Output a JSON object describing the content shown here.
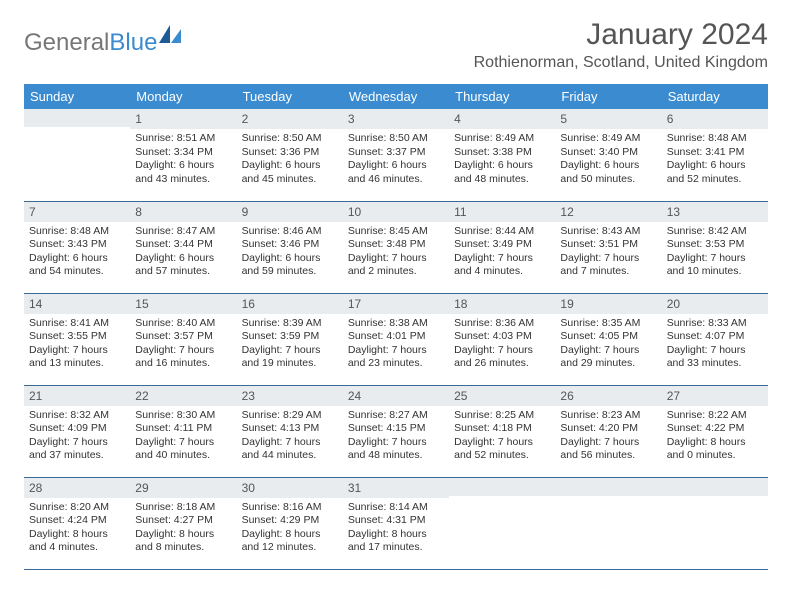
{
  "logo": {
    "text1": "General",
    "text2": "Blue"
  },
  "title": "January 2024",
  "location": "Rothienorman, Scotland, United Kingdom",
  "headers": [
    "Sunday",
    "Monday",
    "Tuesday",
    "Wednesday",
    "Thursday",
    "Friday",
    "Saturday"
  ],
  "colors": {
    "header_bg": "#3a8bd0",
    "header_text": "#ffffff",
    "daynum_bg": "#e9ecef",
    "border": "#3a6a9a",
    "body_text": "#333333",
    "title_text": "#555555"
  },
  "weeks": [
    [
      {
        "n": "",
        "sr": "",
        "ss": "",
        "dl": ""
      },
      {
        "n": "1",
        "sr": "Sunrise: 8:51 AM",
        "ss": "Sunset: 3:34 PM",
        "dl": "Daylight: 6 hours and 43 minutes."
      },
      {
        "n": "2",
        "sr": "Sunrise: 8:50 AM",
        "ss": "Sunset: 3:36 PM",
        "dl": "Daylight: 6 hours and 45 minutes."
      },
      {
        "n": "3",
        "sr": "Sunrise: 8:50 AM",
        "ss": "Sunset: 3:37 PM",
        "dl": "Daylight: 6 hours and 46 minutes."
      },
      {
        "n": "4",
        "sr": "Sunrise: 8:49 AM",
        "ss": "Sunset: 3:38 PM",
        "dl": "Daylight: 6 hours and 48 minutes."
      },
      {
        "n": "5",
        "sr": "Sunrise: 8:49 AM",
        "ss": "Sunset: 3:40 PM",
        "dl": "Daylight: 6 hours and 50 minutes."
      },
      {
        "n": "6",
        "sr": "Sunrise: 8:48 AM",
        "ss": "Sunset: 3:41 PM",
        "dl": "Daylight: 6 hours and 52 minutes."
      }
    ],
    [
      {
        "n": "7",
        "sr": "Sunrise: 8:48 AM",
        "ss": "Sunset: 3:43 PM",
        "dl": "Daylight: 6 hours and 54 minutes."
      },
      {
        "n": "8",
        "sr": "Sunrise: 8:47 AM",
        "ss": "Sunset: 3:44 PM",
        "dl": "Daylight: 6 hours and 57 minutes."
      },
      {
        "n": "9",
        "sr": "Sunrise: 8:46 AM",
        "ss": "Sunset: 3:46 PM",
        "dl": "Daylight: 6 hours and 59 minutes."
      },
      {
        "n": "10",
        "sr": "Sunrise: 8:45 AM",
        "ss": "Sunset: 3:48 PM",
        "dl": "Daylight: 7 hours and 2 minutes."
      },
      {
        "n": "11",
        "sr": "Sunrise: 8:44 AM",
        "ss": "Sunset: 3:49 PM",
        "dl": "Daylight: 7 hours and 4 minutes."
      },
      {
        "n": "12",
        "sr": "Sunrise: 8:43 AM",
        "ss": "Sunset: 3:51 PM",
        "dl": "Daylight: 7 hours and 7 minutes."
      },
      {
        "n": "13",
        "sr": "Sunrise: 8:42 AM",
        "ss": "Sunset: 3:53 PM",
        "dl": "Daylight: 7 hours and 10 minutes."
      }
    ],
    [
      {
        "n": "14",
        "sr": "Sunrise: 8:41 AM",
        "ss": "Sunset: 3:55 PM",
        "dl": "Daylight: 7 hours and 13 minutes."
      },
      {
        "n": "15",
        "sr": "Sunrise: 8:40 AM",
        "ss": "Sunset: 3:57 PM",
        "dl": "Daylight: 7 hours and 16 minutes."
      },
      {
        "n": "16",
        "sr": "Sunrise: 8:39 AM",
        "ss": "Sunset: 3:59 PM",
        "dl": "Daylight: 7 hours and 19 minutes."
      },
      {
        "n": "17",
        "sr": "Sunrise: 8:38 AM",
        "ss": "Sunset: 4:01 PM",
        "dl": "Daylight: 7 hours and 23 minutes."
      },
      {
        "n": "18",
        "sr": "Sunrise: 8:36 AM",
        "ss": "Sunset: 4:03 PM",
        "dl": "Daylight: 7 hours and 26 minutes."
      },
      {
        "n": "19",
        "sr": "Sunrise: 8:35 AM",
        "ss": "Sunset: 4:05 PM",
        "dl": "Daylight: 7 hours and 29 minutes."
      },
      {
        "n": "20",
        "sr": "Sunrise: 8:33 AM",
        "ss": "Sunset: 4:07 PM",
        "dl": "Daylight: 7 hours and 33 minutes."
      }
    ],
    [
      {
        "n": "21",
        "sr": "Sunrise: 8:32 AM",
        "ss": "Sunset: 4:09 PM",
        "dl": "Daylight: 7 hours and 37 minutes."
      },
      {
        "n": "22",
        "sr": "Sunrise: 8:30 AM",
        "ss": "Sunset: 4:11 PM",
        "dl": "Daylight: 7 hours and 40 minutes."
      },
      {
        "n": "23",
        "sr": "Sunrise: 8:29 AM",
        "ss": "Sunset: 4:13 PM",
        "dl": "Daylight: 7 hours and 44 minutes."
      },
      {
        "n": "24",
        "sr": "Sunrise: 8:27 AM",
        "ss": "Sunset: 4:15 PM",
        "dl": "Daylight: 7 hours and 48 minutes."
      },
      {
        "n": "25",
        "sr": "Sunrise: 8:25 AM",
        "ss": "Sunset: 4:18 PM",
        "dl": "Daylight: 7 hours and 52 minutes."
      },
      {
        "n": "26",
        "sr": "Sunrise: 8:23 AM",
        "ss": "Sunset: 4:20 PM",
        "dl": "Daylight: 7 hours and 56 minutes."
      },
      {
        "n": "27",
        "sr": "Sunrise: 8:22 AM",
        "ss": "Sunset: 4:22 PM",
        "dl": "Daylight: 8 hours and 0 minutes."
      }
    ],
    [
      {
        "n": "28",
        "sr": "Sunrise: 8:20 AM",
        "ss": "Sunset: 4:24 PM",
        "dl": "Daylight: 8 hours and 4 minutes."
      },
      {
        "n": "29",
        "sr": "Sunrise: 8:18 AM",
        "ss": "Sunset: 4:27 PM",
        "dl": "Daylight: 8 hours and 8 minutes."
      },
      {
        "n": "30",
        "sr": "Sunrise: 8:16 AM",
        "ss": "Sunset: 4:29 PM",
        "dl": "Daylight: 8 hours and 12 minutes."
      },
      {
        "n": "31",
        "sr": "Sunrise: 8:14 AM",
        "ss": "Sunset: 4:31 PM",
        "dl": "Daylight: 8 hours and 17 minutes."
      },
      {
        "n": "",
        "sr": "",
        "ss": "",
        "dl": ""
      },
      {
        "n": "",
        "sr": "",
        "ss": "",
        "dl": ""
      },
      {
        "n": "",
        "sr": "",
        "ss": "",
        "dl": ""
      }
    ]
  ]
}
